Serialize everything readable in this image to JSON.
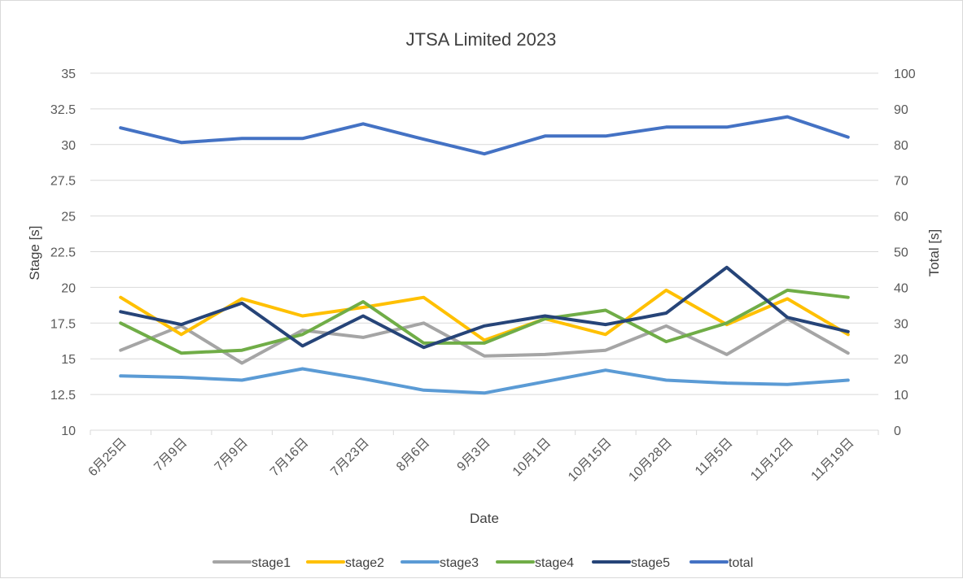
{
  "chart_data": {
    "type": "line",
    "title": "JTSA Limited 2023",
    "xlabel": "Date",
    "ylabel": "Stage [s]",
    "y2label": "Total [s]",
    "ylim": [
      10,
      35
    ],
    "y2lim": [
      0,
      100
    ],
    "yticks": [
      "10",
      "12.5",
      "15",
      "17.5",
      "20",
      "22.5",
      "25",
      "27.5",
      "30",
      "32.5",
      "35"
    ],
    "y2ticks": [
      "0",
      "10",
      "20",
      "30",
      "40",
      "50",
      "60",
      "70",
      "80",
      "90",
      "100"
    ],
    "categories": [
      "6月25日",
      "7月9日",
      "7月9日",
      "7月16日",
      "7月23日",
      "8月6日",
      "9月3日",
      "10月1日",
      "10月15日",
      "10月28日",
      "11月5日",
      "11月12日",
      "11月19日"
    ],
    "grid": true,
    "legend_position": "bottom",
    "series": [
      {
        "name": "stage1",
        "axis": "left",
        "color": "#a5a5a5",
        "values": [
          15.6,
          17.3,
          14.7,
          17.0,
          16.5,
          17.5,
          15.2,
          15.3,
          15.6,
          17.3,
          15.3,
          17.8,
          15.4
        ]
      },
      {
        "name": "stage2",
        "axis": "left",
        "color": "#ffc000",
        "values": [
          19.3,
          16.7,
          19.2,
          18.0,
          18.6,
          19.3,
          16.3,
          17.8,
          16.7,
          19.8,
          17.4,
          19.2,
          16.7
        ]
      },
      {
        "name": "stage3",
        "axis": "left",
        "color": "#5b9bd5",
        "values": [
          13.8,
          13.7,
          13.5,
          14.3,
          13.6,
          12.8,
          12.6,
          13.4,
          14.2,
          13.5,
          13.3,
          13.2,
          13.5
        ]
      },
      {
        "name": "stage4",
        "axis": "left",
        "color": "#70ad47",
        "values": [
          17.5,
          15.4,
          15.6,
          16.7,
          19.0,
          16.1,
          16.1,
          17.8,
          18.4,
          16.2,
          17.5,
          19.8,
          19.3
        ]
      },
      {
        "name": "stage5",
        "axis": "left",
        "color": "#264478",
        "values": [
          18.3,
          17.4,
          18.9,
          15.9,
          18.0,
          15.8,
          17.3,
          18.0,
          17.4,
          18.2,
          21.4,
          17.9,
          16.9
        ]
      },
      {
        "name": "total",
        "axis": "right",
        "color": "#4472c4",
        "values": [
          84.7,
          80.6,
          81.7,
          81.7,
          85.8,
          81.5,
          77.4,
          82.4,
          82.4,
          84.9,
          84.9,
          87.8,
          82.1
        ]
      }
    ]
  }
}
